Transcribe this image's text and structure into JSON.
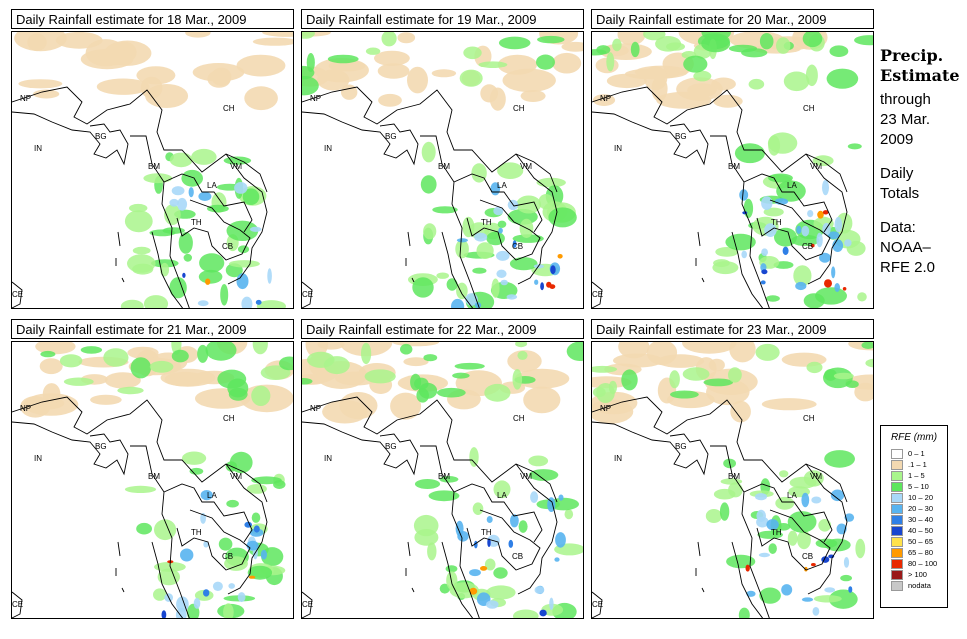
{
  "panels": [
    {
      "title": "Daily Rainfall estimate for  18 Mar., 2009",
      "rain_intensity": 1
    },
    {
      "title": "Daily Rainfall estimate for  19 Mar., 2009",
      "rain_intensity": 2
    },
    {
      "title": "Daily Rainfall estimate for  20 Mar., 2009",
      "rain_intensity": 3
    },
    {
      "title": "Daily Rainfall estimate for  21 Mar., 2009",
      "rain_intensity": 2
    },
    {
      "title": "Daily Rainfall estimate for  22 Mar., 2009",
      "rain_intensity": 2
    },
    {
      "title": "Daily Rainfall estimate for  23 Mar., 2009",
      "rain_intensity": 2
    }
  ],
  "country_labels": {
    "np": "NP",
    "ch": "CH",
    "in": "IN",
    "bg": "BG",
    "bm": "BM",
    "vm": "VM",
    "la": "LA",
    "th": "TH",
    "cb": "CB",
    "ce": "CE"
  },
  "side": {
    "title_line1": "Precip.",
    "title_line2": "Estimate",
    "through": "through",
    "date_line1": "23 Mar.",
    "date_line2": "2009",
    "daily_line1": "Daily",
    "daily_line2": "Totals",
    "data_line1": "Data:",
    "data_line2": "NOAA–",
    "data_line3": "RFE 2.0"
  },
  "legend": {
    "title": "RFE (mm)",
    "items": [
      {
        "label": "0 – 1",
        "color": "#ffffff"
      },
      {
        "label": ".1 – 1",
        "color": "#f3d9b1"
      },
      {
        "label": "1 – 5",
        "color": "#a9f58c"
      },
      {
        "label": "5 – 10",
        "color": "#5ee65e"
      },
      {
        "label": "10 – 20",
        "color": "#a8d8f8"
      },
      {
        "label": "20 – 30",
        "color": "#58b4f0"
      },
      {
        "label": "30 – 40",
        "color": "#2f7fe6"
      },
      {
        "label": "40 – 50",
        "color": "#1846d0"
      },
      {
        "label": "50 – 65",
        "color": "#ffe24a"
      },
      {
        "label": "65 – 80",
        "color": "#ff9a00"
      },
      {
        "label": "80 – 100",
        "color": "#e82800"
      },
      {
        "label": "> 100",
        "color": "#9a1a1a"
      },
      {
        "label": "nodata",
        "color": "#c8c8c8"
      }
    ]
  }
}
